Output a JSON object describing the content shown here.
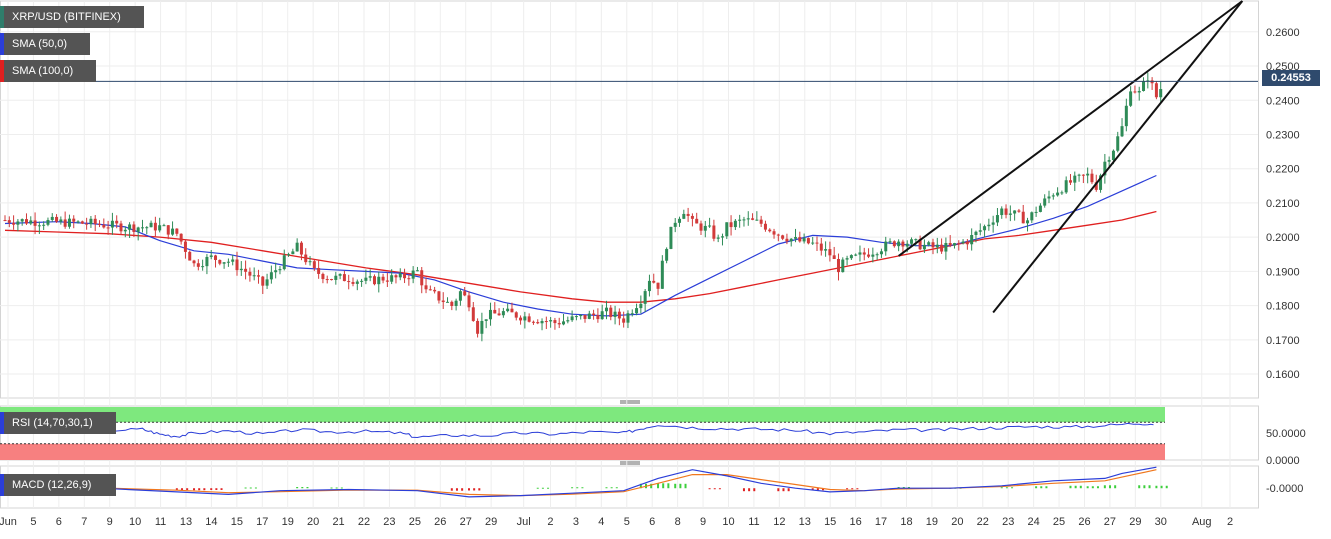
{
  "chart_data": [
    {
      "type": "line",
      "symbol": "XRP/USD (BITFINEX)",
      "y_ticks": [
        "0.2600",
        "0.2500",
        "0.2400",
        "0.2300",
        "0.2200",
        "0.2100",
        "0.2000",
        "0.1900",
        "0.1800",
        "0.1700",
        "0.1600"
      ],
      "ylim": [
        0.153,
        0.269
      ],
      "last_price": "0.24553",
      "series": [
        {
          "name": "SMA (50,0)",
          "color": "#2b3ed8"
        },
        {
          "name": "SMA (100,0)",
          "color": "#e02020"
        }
      ],
      "price": [
        [
          0,
          0.205
        ],
        [
          5,
          0.204
        ],
        [
          7,
          0.203
        ],
        [
          9,
          0.203
        ],
        [
          10,
          0.201
        ],
        [
          11,
          0.192
        ],
        [
          12,
          0.194
        ],
        [
          13,
          0.193
        ],
        [
          14,
          0.19
        ],
        [
          15,
          0.186
        ],
        [
          16,
          0.192
        ],
        [
          17,
          0.197
        ],
        [
          18,
          0.19
        ],
        [
          19,
          0.188
        ],
        [
          20,
          0.188
        ],
        [
          21,
          0.187
        ],
        [
          22,
          0.188
        ],
        [
          23,
          0.188
        ],
        [
          24,
          0.19
        ],
        [
          24.5,
          0.184
        ],
        [
          25,
          0.183
        ],
        [
          26,
          0.18
        ],
        [
          26.5,
          0.184
        ],
        [
          27,
          0.181
        ],
        [
          27.5,
          0.173
        ],
        [
          28,
          0.177
        ],
        [
          29,
          0.178
        ],
        [
          30,
          0.177
        ],
        [
          31,
          0.176
        ],
        [
          32,
          0.175
        ],
        [
          33,
          0.176
        ],
        [
          34,
          0.177
        ],
        [
          35,
          0.178
        ],
        [
          36,
          0.176
        ],
        [
          37,
          0.182
        ],
        [
          37.5,
          0.188
        ],
        [
          38,
          0.186
        ],
        [
          38.5,
          0.198
        ],
        [
          39,
          0.205
        ],
        [
          39.5,
          0.208
        ],
        [
          40,
          0.204
        ],
        [
          41,
          0.202
        ],
        [
          41.5,
          0.199
        ],
        [
          42,
          0.203
        ],
        [
          43,
          0.205
        ],
        [
          44,
          0.204
        ],
        [
          45,
          0.201
        ],
        [
          46,
          0.199
        ],
        [
          47,
          0.198
        ],
        [
          48,
          0.195
        ],
        [
          48.5,
          0.191
        ],
        [
          49,
          0.193
        ],
        [
          50,
          0.195
        ],
        [
          51,
          0.197
        ],
        [
          52,
          0.199
        ],
        [
          53,
          0.198
        ],
        [
          54,
          0.197
        ],
        [
          55,
          0.197
        ],
        [
          56,
          0.199
        ],
        [
          57,
          0.203
        ],
        [
          58,
          0.208
        ],
        [
          59,
          0.206
        ],
        [
          59.5,
          0.205
        ],
        [
          60,
          0.208
        ],
        [
          61,
          0.213
        ],
        [
          62,
          0.216
        ],
        [
          63,
          0.218
        ],
        [
          63.5,
          0.215
        ],
        [
          64,
          0.222
        ],
        [
          64.5,
          0.226
        ],
        [
          65,
          0.232
        ],
        [
          65.5,
          0.244
        ],
        [
          66,
          0.242
        ],
        [
          66.5,
          0.247
        ],
        [
          67,
          0.241
        ],
        [
          67.5,
          0.246
        ]
      ],
      "sma50": [
        [
          0,
          0.204
        ],
        [
          3,
          0.2045
        ],
        [
          5,
          0.204
        ],
        [
          7,
          0.203
        ],
        [
          9,
          0.199
        ],
        [
          11,
          0.196
        ],
        [
          13,
          0.195
        ],
        [
          15,
          0.193
        ],
        [
          17,
          0.191
        ],
        [
          19,
          0.1905
        ],
        [
          21,
          0.19
        ],
        [
          23,
          0.1895
        ],
        [
          25,
          0.1875
        ],
        [
          27,
          0.184
        ],
        [
          29,
          0.181
        ],
        [
          31,
          0.179
        ],
        [
          33,
          0.1775
        ],
        [
          35,
          0.177
        ],
        [
          37,
          0.1775
        ],
        [
          39,
          0.183
        ],
        [
          41,
          0.188
        ],
        [
          43,
          0.193
        ],
        [
          45,
          0.198
        ],
        [
          47,
          0.2005
        ],
        [
          49,
          0.2
        ],
        [
          51,
          0.1985
        ],
        [
          53,
          0.1975
        ],
        [
          55,
          0.1975
        ],
        [
          57,
          0.2
        ],
        [
          59,
          0.2025
        ],
        [
          61,
          0.2055
        ],
        [
          63,
          0.209
        ],
        [
          65,
          0.2135
        ],
        [
          67,
          0.218
        ]
      ],
      "sma100": [
        [
          0,
          0.202
        ],
        [
          3,
          0.2015
        ],
        [
          6,
          0.201
        ],
        [
          9,
          0.2
        ],
        [
          12,
          0.1985
        ],
        [
          15,
          0.196
        ],
        [
          18,
          0.1935
        ],
        [
          21,
          0.191
        ],
        [
          24,
          0.189
        ],
        [
          27,
          0.1865
        ],
        [
          30,
          0.184
        ],
        [
          33,
          0.182
        ],
        [
          35,
          0.181
        ],
        [
          37,
          0.181
        ],
        [
          39,
          0.182
        ],
        [
          41,
          0.1835
        ],
        [
          43,
          0.1855
        ],
        [
          45,
          0.1875
        ],
        [
          47,
          0.1895
        ],
        [
          49,
          0.1915
        ],
        [
          51,
          0.1935
        ],
        [
          53,
          0.1955
        ],
        [
          55,
          0.1975
        ],
        [
          57,
          0.1995
        ],
        [
          59,
          0.2005
        ],
        [
          61,
          0.202
        ],
        [
          63,
          0.2035
        ],
        [
          65,
          0.205
        ],
        [
          67,
          0.2075
        ]
      ],
      "trendlines": [
        {
          "from": [
            52,
            0.1945
          ],
          "to": [
            72,
            0.269
          ]
        },
        {
          "from": [
            57.5,
            0.178
          ],
          "to": [
            72,
            0.269
          ]
        }
      ]
    },
    {
      "type": "line",
      "name": "RSI (14,70,30,1)",
      "y_ticks": [
        "50.0000",
        "0.0000"
      ],
      "ylim": [
        0,
        100
      ],
      "overbought": 70,
      "oversold": 30,
      "values": [
        [
          0,
          58
        ],
        [
          2,
          56
        ],
        [
          4,
          58
        ],
        [
          6,
          55
        ],
        [
          8,
          57
        ],
        [
          9,
          48
        ],
        [
          10,
          44
        ],
        [
          11,
          50
        ],
        [
          13,
          54
        ],
        [
          15,
          48
        ],
        [
          17,
          56
        ],
        [
          19,
          52
        ],
        [
          21,
          53
        ],
        [
          23,
          50
        ],
        [
          24,
          42
        ],
        [
          26,
          46
        ],
        [
          28,
          45
        ],
        [
          30,
          50
        ],
        [
          32,
          48
        ],
        [
          34,
          52
        ],
        [
          36,
          50
        ],
        [
          37,
          58
        ],
        [
          38,
          66
        ],
        [
          40,
          60
        ],
        [
          42,
          58
        ],
        [
          44,
          57
        ],
        [
          46,
          55
        ],
        [
          48,
          49
        ],
        [
          50,
          52
        ],
        [
          52,
          56
        ],
        [
          54,
          55
        ],
        [
          56,
          58
        ],
        [
          58,
          60
        ],
        [
          60,
          62
        ],
        [
          62,
          61
        ],
        [
          64,
          64
        ],
        [
          66,
          68
        ],
        [
          67,
          67
        ]
      ]
    },
    {
      "type": "bar",
      "name": "MACD (12,26,9)",
      "y_ticks": [
        "-0.0000"
      ],
      "ylim": [
        -0.008,
        0.009
      ],
      "macd": [
        [
          0,
          0.0005
        ],
        [
          5,
          0.0002
        ],
        [
          10,
          -0.0015
        ],
        [
          13,
          -0.0025
        ],
        [
          16,
          -0.001
        ],
        [
          20,
          -0.0005
        ],
        [
          24,
          -0.001
        ],
        [
          27,
          -0.0035
        ],
        [
          30,
          -0.003
        ],
        [
          33,
          -0.002
        ],
        [
          36,
          -0.001
        ],
        [
          38,
          0.004
        ],
        [
          40,
          0.0075
        ],
        [
          42,
          0.005
        ],
        [
          44,
          0.002
        ],
        [
          46,
          0.0
        ],
        [
          48,
          -0.0015
        ],
        [
          50,
          -0.001
        ],
        [
          52,
          0.0
        ],
        [
          55,
          0.0
        ],
        [
          58,
          0.001
        ],
        [
          61,
          0.003
        ],
        [
          64,
          0.004
        ],
        [
          65,
          0.006
        ],
        [
          67,
          0.0085
        ]
      ],
      "signal": [
        [
          0,
          0.0003
        ],
        [
          5,
          0.0002
        ],
        [
          10,
          -0.0008
        ],
        [
          13,
          -0.0018
        ],
        [
          16,
          -0.0014
        ],
        [
          20,
          -0.0007
        ],
        [
          24,
          -0.0008
        ],
        [
          27,
          -0.0025
        ],
        [
          30,
          -0.003
        ],
        [
          33,
          -0.0024
        ],
        [
          36,
          -0.0014
        ],
        [
          38,
          0.002
        ],
        [
          40,
          0.0055
        ],
        [
          42,
          0.0055
        ],
        [
          44,
          0.0035
        ],
        [
          46,
          0.0015
        ],
        [
          48,
          -0.0005
        ],
        [
          50,
          -0.001
        ],
        [
          52,
          -0.0003
        ],
        [
          55,
          0.0
        ],
        [
          58,
          0.0007
        ],
        [
          61,
          0.002
        ],
        [
          64,
          0.003
        ],
        [
          65,
          0.0045
        ],
        [
          67,
          0.0075
        ]
      ],
      "histogram": [
        [
          2,
          0.0002
        ],
        [
          4,
          0.0001
        ],
        [
          10,
          -0.0007
        ],
        [
          11,
          -0.0008
        ],
        [
          12,
          -0.0007
        ],
        [
          14,
          0.0003
        ],
        [
          17,
          0.0005
        ],
        [
          19,
          0.0003
        ],
        [
          26,
          -0.001
        ],
        [
          27,
          -0.0009
        ],
        [
          31,
          0.0002
        ],
        [
          33,
          0.0004
        ],
        [
          35,
          0.0004
        ],
        [
          37,
          0.0018
        ],
        [
          38,
          0.002
        ],
        [
          39,
          0.0018
        ],
        [
          41,
          -0.0003
        ],
        [
          43,
          -0.0012
        ],
        [
          45,
          -0.0012
        ],
        [
          47,
          -0.0008
        ],
        [
          49,
          -0.0002
        ],
        [
          52,
          0.0005
        ],
        [
          55,
          0.0002
        ],
        [
          58,
          0.0004
        ],
        [
          60,
          0.0008
        ],
        [
          62,
          0.001
        ],
        [
          63,
          0.0008
        ],
        [
          64,
          0.0012
        ],
        [
          66,
          0.0012
        ],
        [
          67,
          0.001
        ]
      ]
    }
  ],
  "x_ticks": [
    {
      "label": "Jun",
      "i": 0
    },
    {
      "label": "5",
      "i": 1.8
    },
    {
      "label": "6",
      "i": 3.6
    },
    {
      "label": "7",
      "i": 5.4
    },
    {
      "label": "9",
      "i": 7.2
    },
    {
      "label": "10",
      "i": 9.0
    },
    {
      "label": "11",
      "i": 10.8
    },
    {
      "label": "13",
      "i": 12.6
    },
    {
      "label": "14",
      "i": 14.4
    },
    {
      "label": "15",
      "i": 16.2
    },
    {
      "label": "17",
      "i": 18.0
    },
    {
      "label": "19",
      "i": 19.8
    },
    {
      "label": "20",
      "i": 21.6
    },
    {
      "label": "21",
      "i": 23.4
    },
    {
      "label": "22",
      "i": 25.2
    },
    {
      "label": "23",
      "i": 27.0
    },
    {
      "label": "25",
      "i": 28.8
    },
    {
      "label": "26",
      "i": 30.6
    },
    {
      "label": "27",
      "i": 32.4
    },
    {
      "label": "29",
      "i": 34.2
    },
    {
      "label": "Jul",
      "i": 36.5
    },
    {
      "label": "2",
      "i": 38.4
    },
    {
      "label": "3",
      "i": 40.2
    },
    {
      "label": "4",
      "i": 42.0
    },
    {
      "label": "5",
      "i": 43.8
    },
    {
      "label": "6",
      "i": 45.6
    },
    {
      "label": "8",
      "i": 47.4
    },
    {
      "label": "9",
      "i": 49.2
    },
    {
      "label": "10",
      "i": 51.0
    },
    {
      "label": "11",
      "i": 52.8
    },
    {
      "label": "12",
      "i": 54.6
    },
    {
      "label": "13",
      "i": 56.4
    },
    {
      "label": "15",
      "i": 58.2
    },
    {
      "label": "16",
      "i": 60.0
    },
    {
      "label": "17",
      "i": 61.8
    },
    {
      "label": "18",
      "i": 63.6
    },
    {
      "label": "19",
      "i": 65.4
    },
    {
      "label": "20",
      "i": 67.2
    },
    {
      "label": "22",
      "i": 69.0
    },
    {
      "label": "23",
      "i": 70.8
    },
    {
      "label": "24",
      "i": 72.6
    },
    {
      "label": "25",
      "i": 74.4
    },
    {
      "label": "26",
      "i": 76.2
    },
    {
      "label": "27",
      "i": 78.0
    },
    {
      "label": "29",
      "i": 79.8
    },
    {
      "label": "30",
      "i": 81.6
    },
    {
      "label": "Aug",
      "i": 84.5
    },
    {
      "label": "2",
      "i": 86.5
    }
  ]
}
